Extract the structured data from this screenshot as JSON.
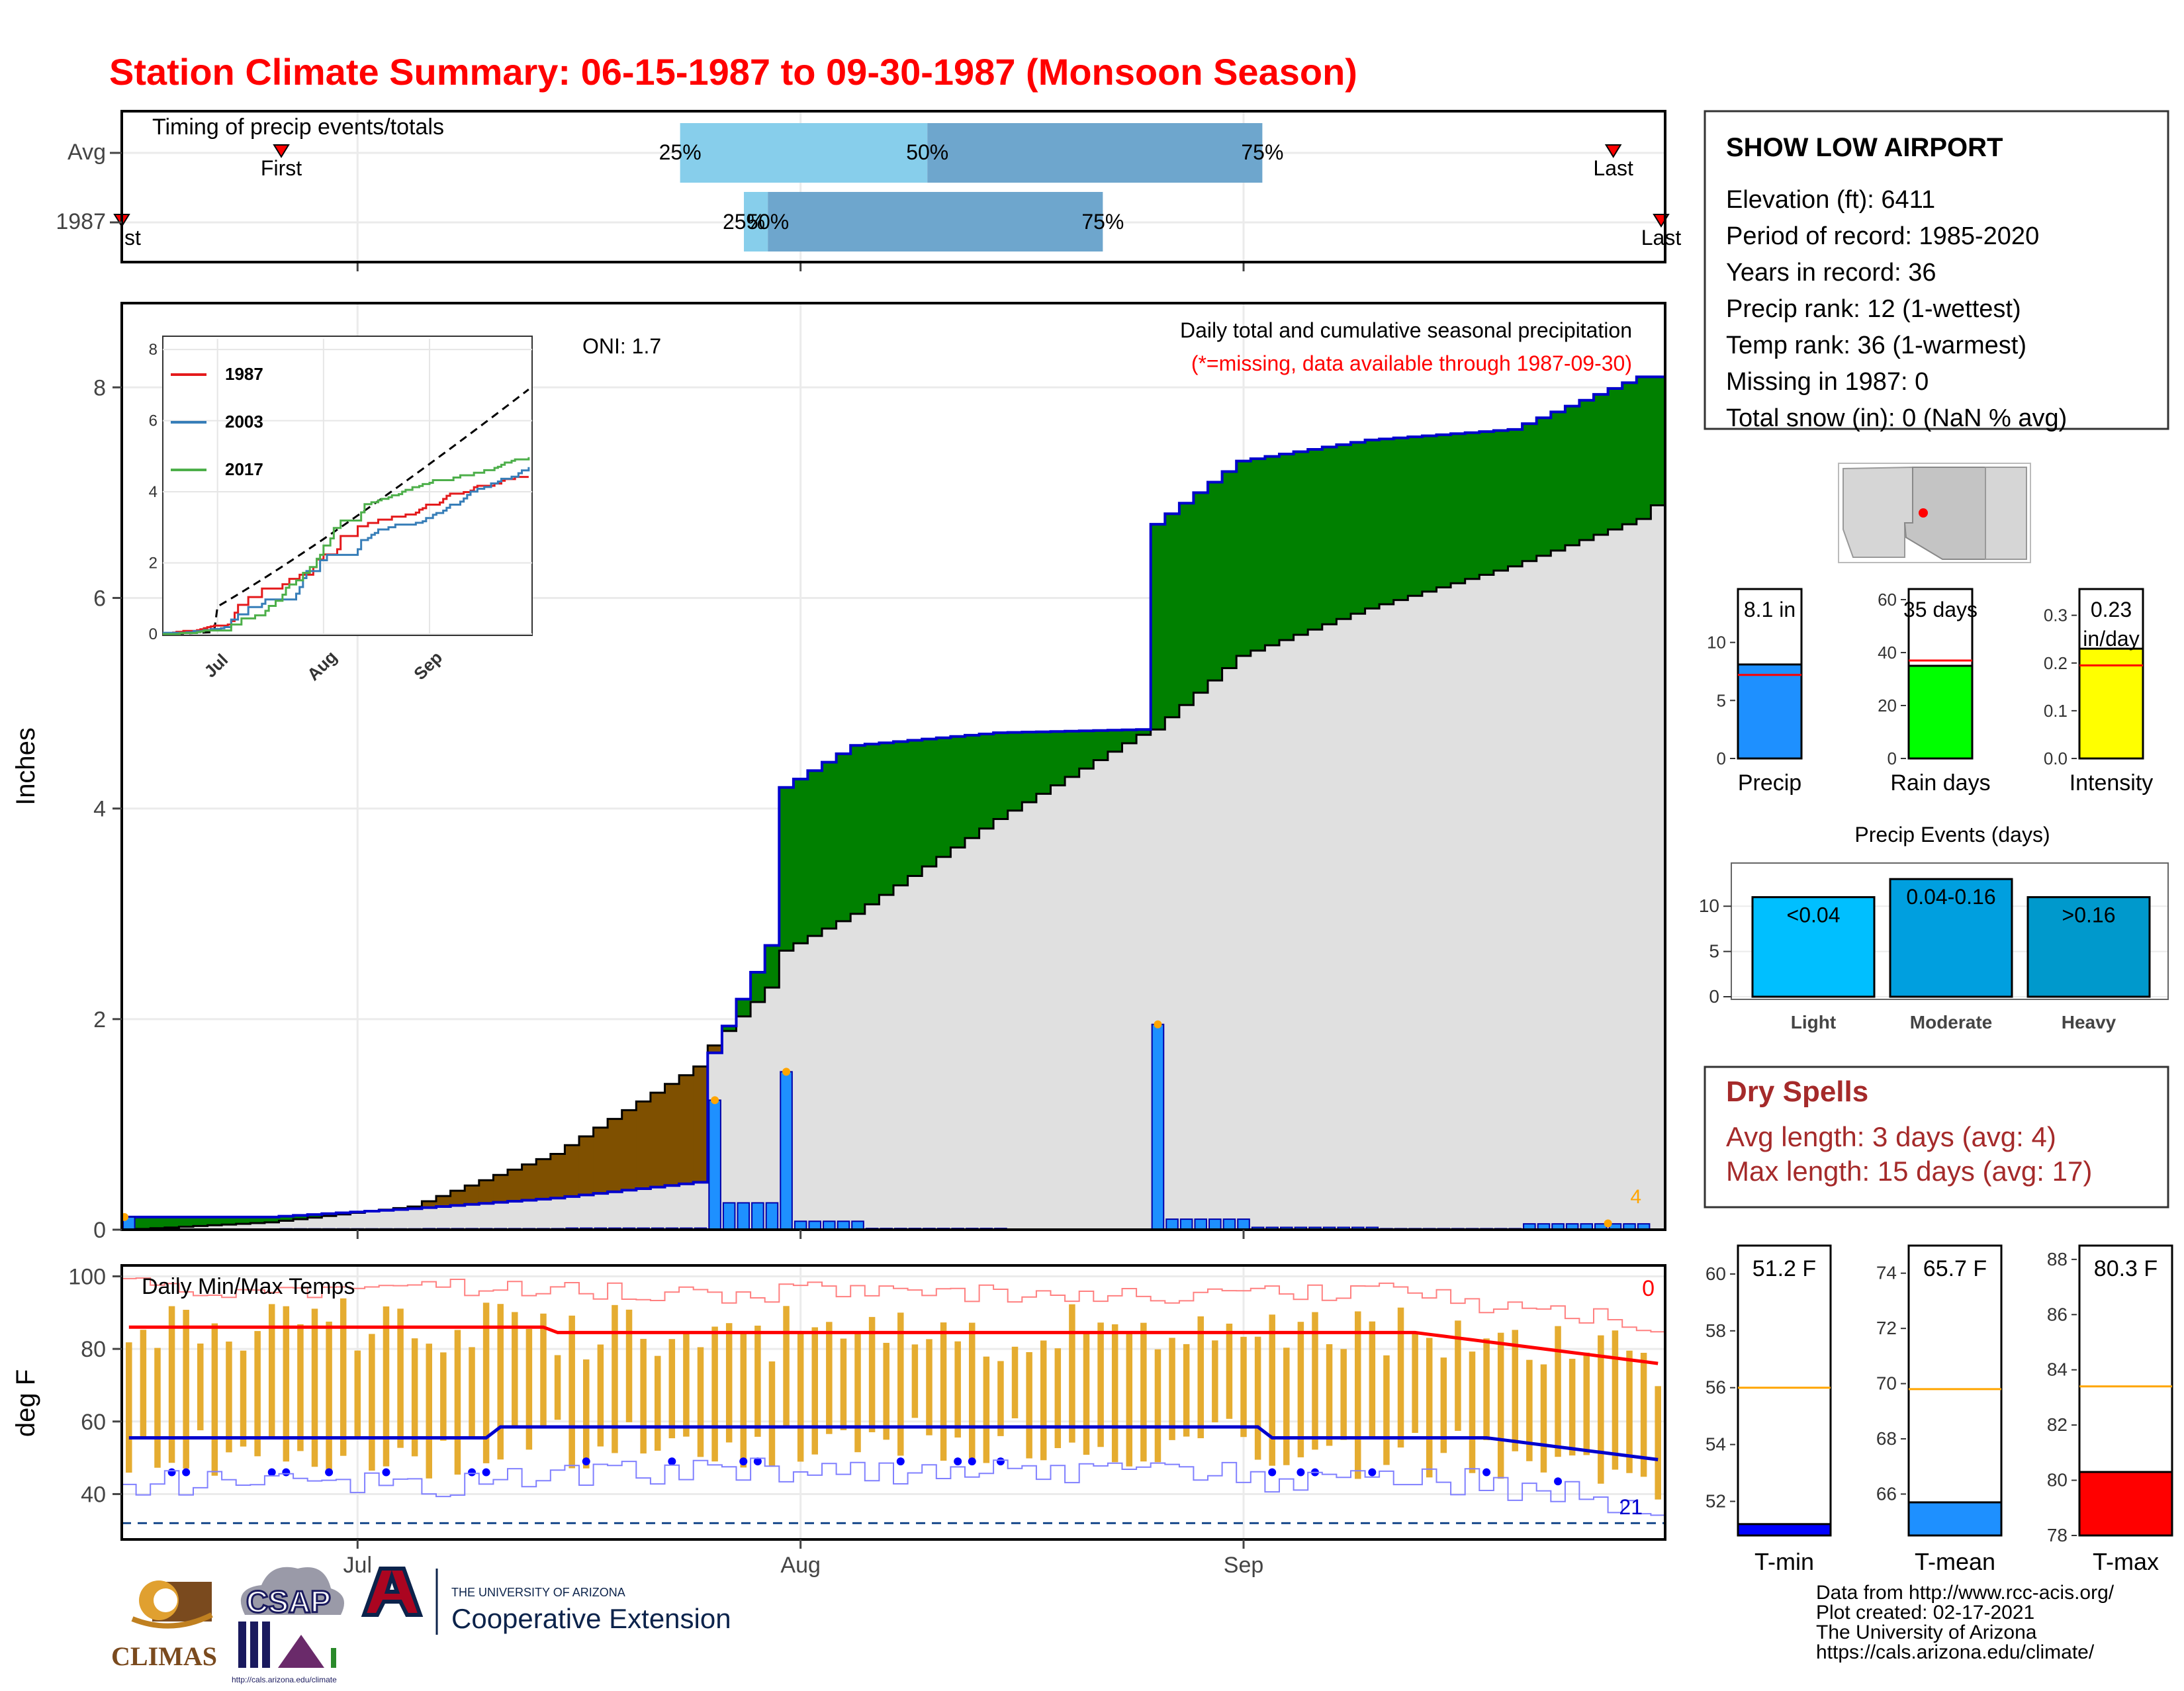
{
  "title": "Station Climate Summary: 06-15-1987 to 09-30-1987 (Monsoon Season)",
  "colors": {
    "title": "#ff0000",
    "precip_bar": "#1e90ff",
    "green_fill": "#008000",
    "brown_fill": "#7f5000",
    "gray_fill": "#e0e0e0",
    "cum_line": "#0000cd",
    "t_max": "#ff0000",
    "t_min": "#0000cd",
    "range_bar": "#e5ac30",
    "quartile_light": "#87ceeb",
    "quartile_dark": "#6ea6cd",
    "rain_days": "#00ff00",
    "intensity": "#ffff00",
    "dry_spells": "#a52a2a",
    "events": "#00bfff"
  },
  "timing": {
    "title": "Timing of precip events/totals",
    "rows": [
      "Avg",
      "1987"
    ],
    "labels": {
      "q25": "25%",
      "q50": "50%",
      "q75": "75%",
      "first": "First",
      "last": "Last",
      "first_clipped": "st"
    },
    "avg": {
      "first_day": 20,
      "q25": 70,
      "q50": 101,
      "q75": 143,
      "last_day": 187
    },
    "y1987": {
      "first_day": 0,
      "q25": 78,
      "q50": 81,
      "q75": 123,
      "last_day": 193
    }
  },
  "main": {
    "title": "Daily total and cumulative seasonal precipitation",
    "subtitle": "(*=missing, data available through 1987-09-30)",
    "oni": "ONI: 1.7",
    "ylabel": "Inches",
    "yticks": [
      "0",
      "2",
      "4",
      "6",
      "8"
    ],
    "xticks": [
      "Jul",
      "Aug",
      "Sep"
    ],
    "corner_count": "4"
  },
  "inset": {
    "yticks": [
      "0",
      "2",
      "4",
      "6",
      "8"
    ],
    "xticks": [
      "Jul",
      "Aug",
      "Sep"
    ],
    "legend": [
      {
        "label": "1987",
        "color": "#e41a1c"
      },
      {
        "label": "2003",
        "color": "#377eb8"
      },
      {
        "label": "2017",
        "color": "#4daf4a"
      }
    ]
  },
  "temps": {
    "title": "Daily Min/Max Temps",
    "ylabel": "deg F",
    "yticks": [
      "40",
      "60",
      "80",
      "100"
    ],
    "xticks": [
      "Jul",
      "Aug",
      "Sep"
    ],
    "max_count": "0",
    "min_count": "21"
  },
  "station": {
    "name": "SHOW LOW AIRPORT",
    "lines": [
      "Elevation (ft): 6411",
      "Period of record: 1985-2020",
      "Years in record: 36",
      "Precip rank: 12 (1-wettest)",
      "Temp rank: 36 (1-warmest)",
      "Missing in 1987: 0",
      "Total snow (in): 0 (NaN % avg)"
    ]
  },
  "summary_bars": [
    {
      "label": "Precip",
      "value_text": "8.1 in",
      "value": 8.1,
      "avg": 7.2,
      "ymax": 14.6,
      "ticks": [
        "0",
        "5",
        "10"
      ],
      "tickvals": [
        0,
        5,
        10
      ],
      "color": "#1e90ff"
    },
    {
      "label": "Rain days",
      "value_text": "35 days",
      "value": 35,
      "avg": 37,
      "ymax": 64,
      "ticks": [
        "0",
        "20",
        "40",
        "60"
      ],
      "tickvals": [
        0,
        20,
        40,
        60
      ],
      "color": "#00ff00"
    },
    {
      "label": "Intensity",
      "value_text": "0.23 in/day",
      "value": 0.23,
      "avg": 0.195,
      "ymax": 0.355,
      "ticks": [
        "0.0",
        "0.1",
        "0.2",
        "0.3"
      ],
      "tickvals": [
        0,
        0.1,
        0.2,
        0.3
      ],
      "color": "#ffff00"
    }
  ],
  "events": {
    "title": "Precip Events (days)",
    "ticks": [
      "0",
      "5",
      "10"
    ],
    "bars": [
      {
        "category": "Light",
        "label": "<0.04",
        "value": 11
      },
      {
        "category": "Moderate",
        "label": "0.04-0.16",
        "value": 13
      },
      {
        "category": "Heavy",
        "label": ">0.16",
        "value": 11
      }
    ]
  },
  "dry_spells": {
    "title": "Dry Spells",
    "avg_line": "Avg length: 3 days (avg: 4)",
    "max_line": "Max length: 15 days (avg: 17)"
  },
  "temp_bars": [
    {
      "label": "T-min",
      "value_text": "51.2 F",
      "value": 51.2,
      "avg": 56.0,
      "ymin": 50.8,
      "ymax": 61.0,
      "ticks": [
        "52",
        "54",
        "56",
        "58",
        "60"
      ],
      "tickvals": [
        52,
        54,
        56,
        58,
        60
      ],
      "color": "#0000ff"
    },
    {
      "label": "T-mean",
      "value_text": "65.7 F",
      "value": 65.7,
      "avg": 69.8,
      "ymin": 64.5,
      "ymax": 75.0,
      "ticks": [
        "66",
        "68",
        "70",
        "72",
        "74"
      ],
      "tickvals": [
        66,
        68,
        70,
        72,
        74
      ],
      "color": "#1e90ff"
    },
    {
      "label": "T-max",
      "value_text": "80.3 F",
      "value": 80.3,
      "avg": 83.4,
      "ymin": 78.0,
      "ymax": 88.5,
      "ticks": [
        "78",
        "80",
        "82",
        "84",
        "86",
        "88"
      ],
      "tickvals": [
        78,
        80,
        82,
        84,
        86,
        88
      ],
      "color": "#ff0000"
    }
  ],
  "footer": {
    "lines": [
      "Data from http://www.rcc-acis.org/",
      "Plot created: 02-17-2021",
      "The University of Arizona",
      "https://cals.arizona.edu/climate/"
    ]
  },
  "logos": {
    "climas": "CLIMAS",
    "csap": "CSAP",
    "csap_url": "http://cals.arizona.edu/climate",
    "ua_small": "THE UNIVERSITY OF ARIZONA",
    "ua_big": "Cooperative Extension",
    "ua_letter": "A"
  },
  "chart_data": {
    "type": "area",
    "x": [
      "06-15",
      "06-25",
      "07-05",
      "07-15",
      "07-25",
      "07-26",
      "07-30",
      "07-31",
      "08-05",
      "08-15",
      "08-25",
      "08-26",
      "09-01",
      "09-10",
      "09-20",
      "09-29",
      "09-30"
    ],
    "series": [
      {
        "name": "1987",
        "values": [
          0.12,
          0.12,
          0.2,
          0.3,
          0.45,
          1.68,
          2.7,
          4.2,
          4.6,
          4.72,
          4.75,
          6.7,
          7.3,
          7.5,
          7.6,
          8.1,
          8.1
        ]
      },
      {
        "name": "",
        "values": [
          0.0,
          0.07,
          0.22,
          0.72,
          1.55,
          1.75,
          2.3,
          2.65,
          3.0,
          3.9,
          4.7,
          4.75,
          5.45,
          5.9,
          6.3,
          6.75,
          6.88
        ]
      }
    ],
    "ylim": [
      0,
      8.8
    ],
    "ylabel": "Inches"
  }
}
